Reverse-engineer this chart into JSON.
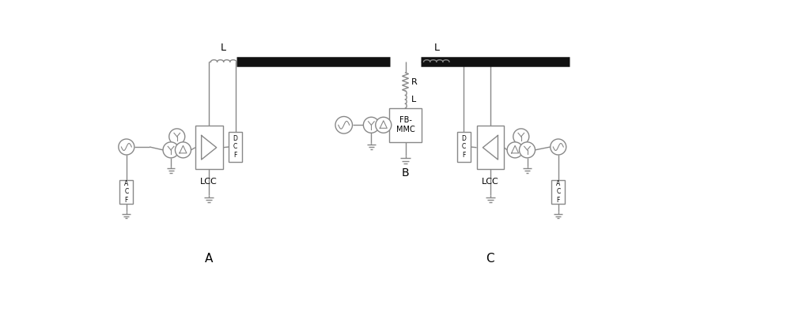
{
  "bg_color": "#ffffff",
  "black_color": "#000000",
  "gray": "#888888",
  "label_A": "A",
  "label_B": "B",
  "label_C": "C",
  "label_LCC_left": "LCC",
  "label_LCC_right": "LCC",
  "label_L_left": "L",
  "label_L_right": "L",
  "label_R": "R",
  "label_L_mid": "L",
  "label_FB_MMC": "FB-\nMMC",
  "label_DCF_left": "D\nC\nF",
  "label_DCF_right": "D\nC\nF",
  "label_ACF_left": "A\nC\nF",
  "label_ACF_right": "A\nC\nF"
}
